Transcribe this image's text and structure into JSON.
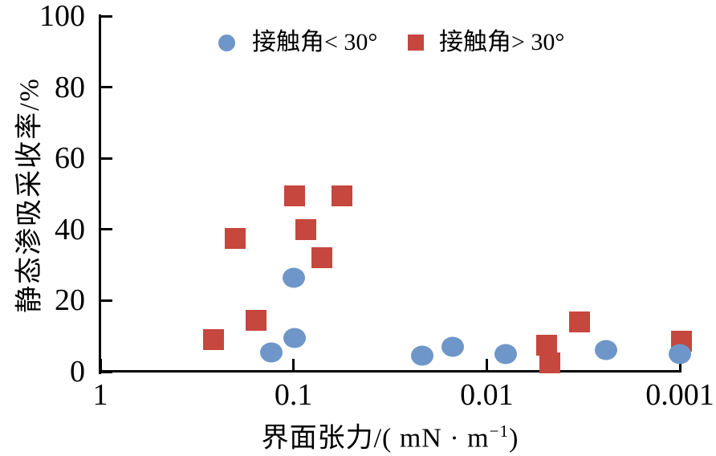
{
  "colors": {
    "series_blue": "#6E96C8",
    "series_red": "#C5473E",
    "axis": "#000000",
    "background": "#ffffff"
  },
  "legend": {
    "items": [
      {
        "label": "接触角< 30°",
        "marker": "circle",
        "color": "#6E96C8"
      },
      {
        "label": "接触角> 30°",
        "marker": "square",
        "color": "#C5473E"
      }
    ]
  },
  "axes": {
    "x_title_prefix": "界面张力/( mN · m",
    "x_title_sup": "−1",
    "x_title_suffix": ")",
    "y_title": "静态渗吸采收率/%"
  },
  "chart_data": {
    "type": "scatter",
    "title": "",
    "xlabel": "界面张力/(mN·m⁻¹)",
    "ylabel": "静态渗吸采收率/%",
    "x_scale": "log10-reversed",
    "xlim": [
      1,
      0.001
    ],
    "ylim": [
      0,
      100
    ],
    "grid": false,
    "legend_position": "top-inside",
    "x_ticks": [
      1,
      0.1,
      0.01,
      0.001
    ],
    "x_tick_labels": [
      "1",
      "0.1",
      "0.01",
      "0.001"
    ],
    "y_ticks": [
      0,
      20,
      40,
      60,
      80,
      100
    ],
    "y_tick_labels": [
      "0",
      "20",
      "40",
      "60",
      "80",
      "100"
    ],
    "series": [
      {
        "name": "接触角< 30°",
        "marker": "circle",
        "color": "#6E96C8",
        "points": [
          {
            "x": 0.13,
            "y": 5.5
          },
          {
            "x": 0.1,
            "y": 26.5
          },
          {
            "x": 0.099,
            "y": 9.5
          },
          {
            "x": 0.0215,
            "y": 4.5
          },
          {
            "x": 0.015,
            "y": 7
          },
          {
            "x": 0.008,
            "y": 5
          },
          {
            "x": 0.0024,
            "y": 6
          },
          {
            "x": 0.001,
            "y": 5
          }
        ]
      },
      {
        "name": "接触角> 30°",
        "marker": "square",
        "color": "#C5473E",
        "points": [
          {
            "x": 0.26,
            "y": 9
          },
          {
            "x": 0.2,
            "y": 37.5
          },
          {
            "x": 0.156,
            "y": 14.5
          },
          {
            "x": 0.099,
            "y": 49.5
          },
          {
            "x": 0.086,
            "y": 40
          },
          {
            "x": 0.071,
            "y": 32
          },
          {
            "x": 0.056,
            "y": 49.5
          },
          {
            "x": 0.0049,
            "y": 7.5
          },
          {
            "x": 0.0047,
            "y": 2.5
          },
          {
            "x": 0.0033,
            "y": 14
          },
          {
            "x": 0.00098,
            "y": 8.5
          }
        ]
      }
    ]
  }
}
